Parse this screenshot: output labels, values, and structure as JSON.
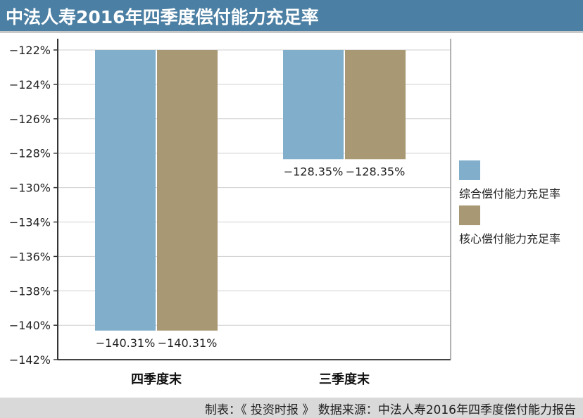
{
  "header": {
    "title": "中法人寿2016年四季度偿付能力充足率"
  },
  "footer": {
    "credit": "制表：《 投资时报 》   数据来源：中法人寿2016年四季度偿付能力报告"
  },
  "colors": {
    "title_bg": "#4b7fa3",
    "series_1": "#80aecb",
    "series_2": "#a89873"
  },
  "chart_data": {
    "type": "bar",
    "categories": [
      "四季度末",
      "三季度末"
    ],
    "series": [
      {
        "name": "综合偿付能力充足率",
        "values": [
          -140.31,
          -128.35
        ],
        "labels": [
          "−140.31%",
          "−128.35%"
        ]
      },
      {
        "name": "核心偿付能力充足率",
        "values": [
          -140.31,
          -128.35
        ],
        "labels": [
          "−140.31%",
          "−128.35%"
        ]
      }
    ],
    "yticks": [
      "−122%",
      "−124%",
      "−126%",
      "−128%",
      "−130%",
      "−134%",
      "−136%",
      "−138%",
      "−140%",
      "−142%"
    ],
    "ylim": [
      -142,
      -122
    ],
    "grid": true,
    "legend_position": "right"
  }
}
